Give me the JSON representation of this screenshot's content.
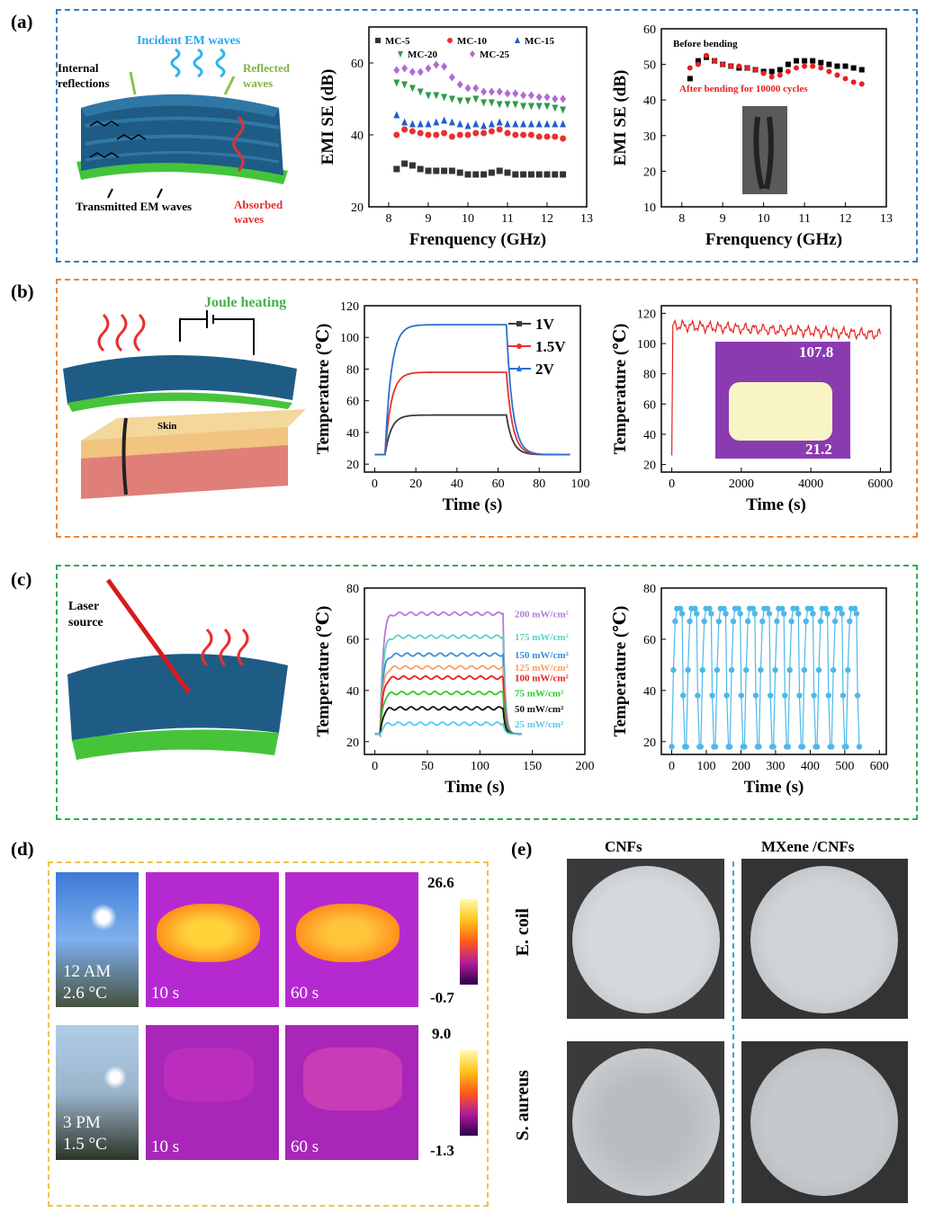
{
  "panels": {
    "a": {
      "label": "(a)",
      "border": "#3a7fc2"
    },
    "b": {
      "label": "(b)",
      "border": "#e8883a"
    },
    "c": {
      "label": "(c)",
      "border": "#2eaa56"
    },
    "d": {
      "label": "(d)",
      "border": "#f2c24a"
    },
    "e": {
      "label": "(e)"
    }
  },
  "illustrations": {
    "a": {
      "incident": "Incident EM waves",
      "internal": "Internal reflections",
      "reflected": "Reflected waves",
      "transmitted": "Transmitted EM waves",
      "absorbed": "Absorbed waves"
    },
    "b": {
      "joule": "Joule heating",
      "skin": "Skin"
    },
    "c": {
      "laser": "Laser source"
    }
  },
  "photo_d": {
    "row1": {
      "time_label": "12 AM",
      "temp_label": "2.6 °C",
      "t1": "10 s",
      "t2": "60 s",
      "scale_max": "26.6",
      "scale_min": "-0.7"
    },
    "row2": {
      "time_label": "3 PM",
      "temp_label": "1.5 °C",
      "t1": "10 s",
      "t2": "60 s",
      "scale_max": "9.0",
      "scale_min": "-1.3"
    }
  },
  "photo_e": {
    "col1": "CNFs",
    "col2": "MXene /CNFs",
    "row1": "E. coil",
    "row2": "S. aureus"
  },
  "colors": {
    "mc5": "#333333",
    "mc10": "#e8322e",
    "mc15": "#1f5fc8",
    "mc20": "#2d9a4a",
    "mc25": "#b06ad8",
    "v1": "#3a3a3a",
    "v15": "#e8322e",
    "v2": "#2d6fd1",
    "p200": "#b87ad6",
    "p175": "#5fd0c0",
    "p150": "#3a8fd6",
    "p125": "#f6a06a",
    "p100": "#e8201e",
    "p75": "#2acc2a",
    "p50": "#111111",
    "p25": "#5ac8e8",
    "cycle": "#4db8ea",
    "before": "#000000",
    "after": "#e8201e"
  },
  "chart_data": [
    {
      "type": "scatter",
      "xlabel": "Frenquency (GHz)",
      "ylabel": "EMI SE (dB)",
      "xlim": [
        7.5,
        13
      ],
      "ylim": [
        20,
        70
      ],
      "xticks": [
        "8",
        "9",
        "10",
        "11",
        "12",
        "13"
      ],
      "yticks": [
        "20",
        "40",
        "60"
      ],
      "legend_position": "top",
      "x": [
        8.2,
        8.4,
        8.6,
        8.8,
        9.0,
        9.2,
        9.4,
        9.6,
        9.8,
        10.0,
        10.2,
        10.4,
        10.6,
        10.8,
        11.0,
        11.2,
        11.4,
        11.6,
        11.8,
        12.0,
        12.2,
        12.4
      ],
      "series": [
        {
          "name": "MC-5",
          "marker": "square",
          "values": [
            30.5,
            32,
            31.5,
            30.5,
            30,
            30,
            30,
            30,
            29.5,
            29,
            29,
            29,
            29.5,
            30,
            29.5,
            29,
            29,
            29,
            29,
            29,
            29,
            29
          ]
        },
        {
          "name": "MC-10",
          "marker": "circle",
          "values": [
            40,
            41.5,
            41,
            40.5,
            40,
            40,
            40.5,
            39.5,
            40,
            40,
            40.5,
            40.5,
            41,
            41.5,
            40.5,
            40,
            40,
            40,
            39.5,
            39.5,
            39.5,
            39
          ]
        },
        {
          "name": "MC-15",
          "marker": "triangle-up",
          "values": [
            45.5,
            43.5,
            43,
            43,
            43,
            43.5,
            44,
            43.5,
            43,
            42.5,
            43,
            42.5,
            43,
            43.5,
            43,
            43,
            43,
            43,
            43,
            43,
            43,
            43
          ]
        },
        {
          "name": "MC-20",
          "marker": "triangle-down",
          "values": [
            54.5,
            54,
            53,
            52,
            51,
            51,
            50.5,
            50,
            49.5,
            49.5,
            50,
            49,
            49,
            48.5,
            48.5,
            48.5,
            48,
            48,
            48,
            48,
            47.5,
            47
          ]
        },
        {
          "name": "MC-25",
          "marker": "diamond",
          "values": [
            58,
            58.5,
            57.5,
            57.5,
            58.5,
            59.5,
            59,
            56,
            54,
            53,
            53,
            52,
            52,
            52,
            51.5,
            51.5,
            51,
            51,
            50.5,
            50.5,
            50,
            50
          ]
        }
      ]
    },
    {
      "type": "scatter",
      "xlabel": "Frenquency (GHz)",
      "ylabel": "EMI SE (dB)",
      "xlim": [
        7.5,
        13
      ],
      "ylim": [
        10,
        60
      ],
      "xticks": [
        "8",
        "9",
        "10",
        "11",
        "12",
        "13"
      ],
      "yticks": [
        "10",
        "20",
        "30",
        "40",
        "50",
        "60"
      ],
      "inset_photo": true,
      "x": [
        8.2,
        8.4,
        8.6,
        8.8,
        9.0,
        9.2,
        9.4,
        9.6,
        9.8,
        10.0,
        10.2,
        10.4,
        10.6,
        10.8,
        11.0,
        11.2,
        11.4,
        11.6,
        11.8,
        12.0,
        12.2,
        12.4
      ],
      "series": [
        {
          "name": "Before bending",
          "marker": "square",
          "values": [
            46,
            51,
            52,
            51,
            50,
            49.5,
            49,
            49,
            48.5,
            48,
            48,
            48.5,
            50,
            51,
            51,
            51,
            50.5,
            50,
            49.5,
            49.5,
            49,
            48.5
          ]
        },
        {
          "name": "After bending for 10000 cycles",
          "marker": "circle",
          "values": [
            49,
            50,
            52.5,
            51,
            50,
            49.5,
            49.5,
            49,
            48.5,
            47.5,
            46.5,
            47,
            48,
            49,
            49.5,
            49.5,
            49,
            48,
            47,
            46,
            45,
            44.5
          ]
        }
      ]
    },
    {
      "type": "line",
      "xlabel": "Time (s)",
      "ylabel": "Temperature (℃)",
      "xlim": [
        -5,
        100
      ],
      "ylim": [
        15,
        120
      ],
      "xticks": [
        "0",
        "20",
        "40",
        "60",
        "80",
        "100"
      ],
      "yticks": [
        "20",
        "40",
        "60",
        "80",
        "100",
        "120"
      ],
      "legend_position": "top-right",
      "series": [
        {
          "name": "1V",
          "plateau": 51,
          "start": 26
        },
        {
          "name": "1.5V",
          "plateau": 78,
          "start": 26
        },
        {
          "name": "2V",
          "plateau": 108,
          "start": 26
        }
      ],
      "on_time": 5,
      "off_time": 64
    },
    {
      "type": "line",
      "xlabel": "Time (s)",
      "ylabel": "Temperature (℃)",
      "xlim": [
        -300,
        6300
      ],
      "ylim": [
        15,
        125
      ],
      "xticks": [
        "0",
        "2000",
        "4000",
        "6000"
      ],
      "yticks": [
        "20",
        "40",
        "60",
        "80",
        "100",
        "120"
      ],
      "inset_scale_max": "107.8",
      "inset_scale_min": "21.2",
      "series": [
        {
          "name": "",
          "start": 26,
          "plateau_start": 112,
          "plateau_end": 106
        }
      ]
    },
    {
      "type": "line",
      "xlabel": "Time (s)",
      "ylabel": "Temperature (℃)",
      "xlim": [
        -10,
        200
      ],
      "ylim": [
        15,
        80
      ],
      "xticks": [
        "0",
        "50",
        "100",
        "150",
        "200"
      ],
      "yticks": [
        "20",
        "40",
        "60",
        "80"
      ],
      "series": [
        {
          "name": "200 mW/cm²",
          "plateau": 70
        },
        {
          "name": "175 mW/cm²",
          "plateau": 61
        },
        {
          "name": "150 mW/cm²",
          "plateau": 54
        },
        {
          "name": "125 mW/cm²",
          "plateau": 49
        },
        {
          "name": "100 mW/cm²",
          "plateau": 45
        },
        {
          "name": "75 mW/cm²",
          "plateau": 39
        },
        {
          "name": "50 mW/cm²",
          "plateau": 33
        },
        {
          "name": "25 mW/cm²",
          "plateau": 27
        }
      ],
      "on_time": 5,
      "off_time": 122
    },
    {
      "type": "line",
      "xlabel": "Time (s)",
      "ylabel": "Temperature (℃)",
      "xlim": [
        -30,
        620
      ],
      "ylim": [
        15,
        80
      ],
      "xticks": [
        "0",
        "100",
        "200",
        "300",
        "400",
        "500",
        "600"
      ],
      "yticks": [
        "20",
        "40",
        "60",
        "80"
      ],
      "series": [
        {
          "name": "",
          "cycles": 13,
          "period": 42,
          "high": 72,
          "low": 18
        }
      ]
    }
  ]
}
